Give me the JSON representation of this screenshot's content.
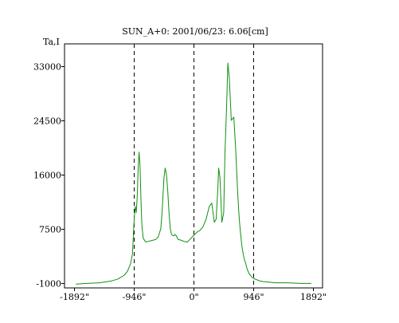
{
  "chart_data": {
    "type": "line",
    "title": "SUN_A+0: 2001/06/23: 6.06[cm]",
    "ylabel": "Ta,I",
    "xlabel": "",
    "xlim": [
      -2050,
      2050
    ],
    "ylim": [
      -1800,
      36500
    ],
    "x_ticks": [
      {
        "value": -1892,
        "label": "-1892\""
      },
      {
        "value": -946,
        "label": "-946\""
      },
      {
        "value": 0,
        "label": "0\""
      },
      {
        "value": 946,
        "label": "946\""
      },
      {
        "value": 1892,
        "label": "1892\""
      }
    ],
    "y_ticks": [
      {
        "value": -1000,
        "label": "-1000"
      },
      {
        "value": 7500,
        "label": "7500"
      },
      {
        "value": 16000,
        "label": "16000"
      },
      {
        "value": 24500,
        "label": "24500"
      },
      {
        "value": 33000,
        "label": "33000"
      }
    ],
    "reference_lines_x": [
      -946,
      0,
      946
    ],
    "colors": {
      "series": "#109010",
      "axis": "#000000",
      "reference": "#000000"
    },
    "series": [
      {
        "x": [
          -1870,
          -1700,
          -1500,
          -1300,
          -1200,
          -1100,
          -1050,
          -1000,
          -970,
          -960,
          -950,
          -940,
          -925,
          -910,
          -895,
          -880,
          -865,
          -850,
          -835,
          -820,
          -800,
          -760,
          -720,
          -680,
          -640,
          -600,
          -560,
          -520,
          -500,
          -470,
          -450,
          -430,
          -410,
          -390,
          -370,
          -355,
          -340,
          -325,
          -310,
          -295,
          -275,
          -245,
          -200,
          -150,
          -100,
          -60,
          -20,
          20,
          60,
          100,
          150,
          200,
          250,
          290,
          330,
          360,
          385,
          400,
          420,
          450,
          480,
          500,
          525,
          545,
          570,
          600,
          640,
          670,
          700,
          720,
          735,
          750,
          765,
          790,
          810,
          830,
          850,
          880,
          910,
          950,
          1000,
          1050,
          1100,
          1200,
          1300,
          1500,
          1700,
          1870
        ],
        "y": [
          -1200,
          -1100,
          -1000,
          -700,
          -400,
          200,
          800,
          2000,
          3500,
          5500,
          7500,
          9500,
          11000,
          10000,
          12500,
          17000,
          19500,
          17500,
          12000,
          8000,
          6000,
          5400,
          5500,
          5600,
          5700,
          5800,
          6200,
          7500,
          10000,
          15500,
          17000,
          16000,
          13500,
          10000,
          7500,
          6800,
          6500,
          6400,
          6400,
          6600,
          6400,
          5800,
          5700,
          5500,
          5400,
          5800,
          6200,
          6600,
          7000,
          7200,
          7800,
          9000,
          11000,
          11500,
          8500,
          9000,
          13500,
          17000,
          15500,
          8500,
          10000,
          19500,
          26500,
          33500,
          31000,
          24500,
          25000,
          20000,
          13500,
          10000,
          8000,
          6500,
          5000,
          3500,
          2600,
          2000,
          1200,
          500,
          100,
          -300,
          -500,
          -700,
          -800,
          -900,
          -1000,
          -1000,
          -1100,
          -1100
        ]
      }
    ]
  }
}
